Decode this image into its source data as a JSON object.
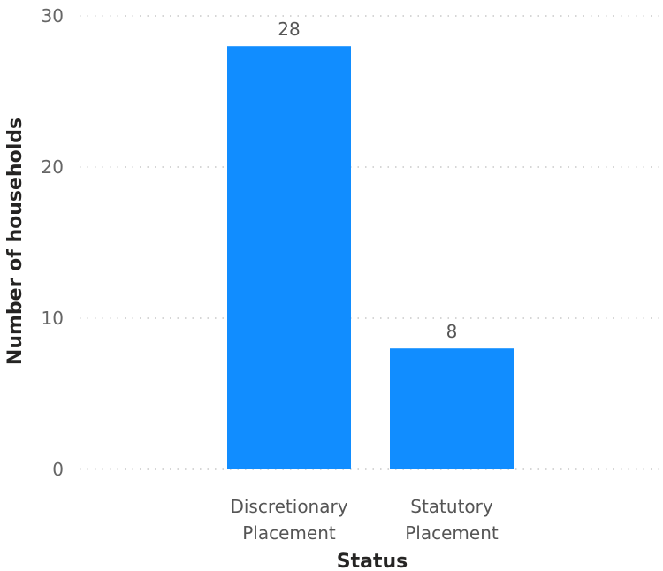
{
  "chart_data": {
    "type": "bar",
    "title": "",
    "xlabel": "Status",
    "ylabel": "Number of households",
    "categories": [
      [
        "Discretionary",
        "Placement"
      ],
      [
        "Statutory",
        "Placement"
      ]
    ],
    "values": [
      28,
      8
    ],
    "data_labels": [
      "28",
      "8"
    ],
    "yticks": [
      0,
      10,
      20,
      30
    ],
    "ylim": [
      0,
      30
    ],
    "grid": true,
    "bar_color": "#118DFF"
  }
}
